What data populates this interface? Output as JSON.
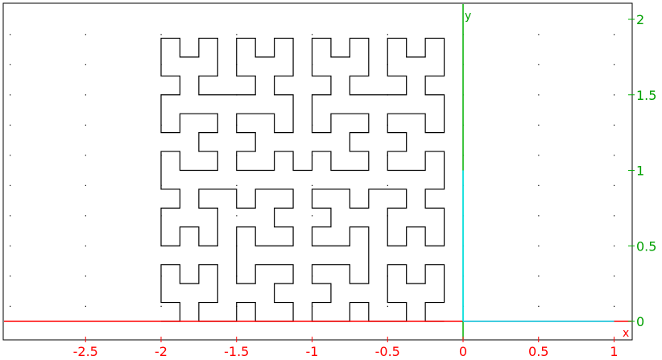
{
  "chart_data": {
    "type": "line",
    "title": "",
    "xlabel": "x",
    "ylabel": "y",
    "xlim": [
      -3.05,
      1.12
    ],
    "ylim": [
      -0.12,
      2.12
    ],
    "grid": "dots",
    "x_ticks": [
      {
        "value": -2.5,
        "label": "-2.5"
      },
      {
        "value": -2,
        "label": "-2"
      },
      {
        "value": -1.5,
        "label": "-1.5"
      },
      {
        "value": -1,
        "label": "-1"
      },
      {
        "value": -0.5,
        "label": "-0.5"
      },
      {
        "value": 0,
        "label": "0"
      },
      {
        "value": 0.5,
        "label": "0.5"
      },
      {
        "value": 1,
        "label": "1"
      }
    ],
    "y_ticks": [
      {
        "value": 0,
        "label": "0"
      },
      {
        "value": 0.5,
        "label": "0.5"
      },
      {
        "value": 1,
        "label": "1"
      },
      {
        "value": 1.5,
        "label": "1.5"
      },
      {
        "value": 2,
        "label": "2"
      }
    ],
    "colors": {
      "x_axis": "#ff0000",
      "y_axis": "#00b000",
      "unit_x": "#00e5ff",
      "unit_y": "#00e5ff",
      "curve": "#000000",
      "grid_dot": "#000000"
    },
    "series": [
      {
        "curve": "hilbert",
        "order": 4,
        "square_x": [
          -2.0,
          -0.125
        ],
        "square_y": [
          0.0,
          1.875
        ],
        "cell": 0.125,
        "color": "#000000"
      }
    ]
  }
}
